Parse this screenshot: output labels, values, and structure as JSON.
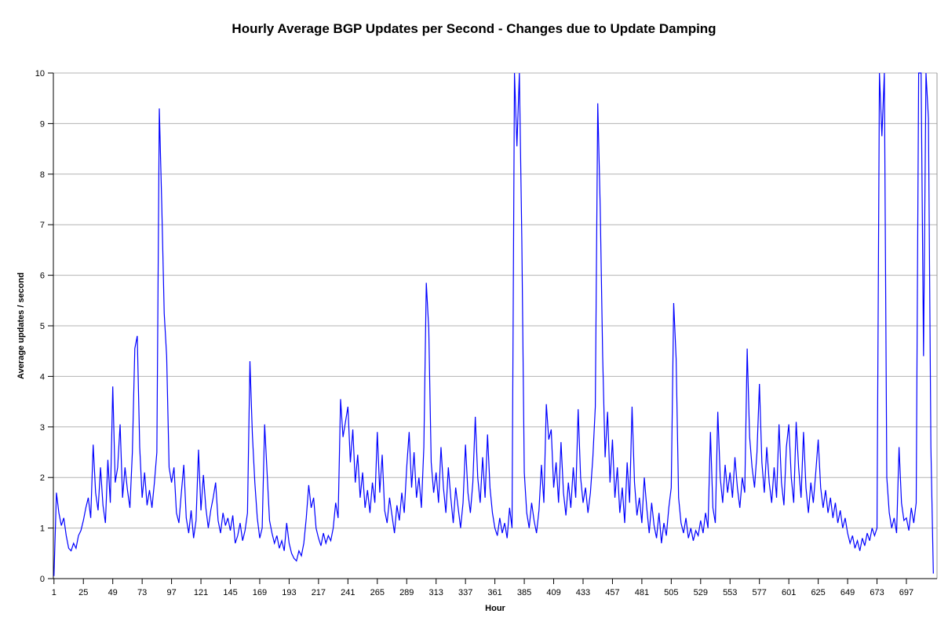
{
  "chart_data": {
    "type": "line",
    "title": "Hourly Average BGP Updates per Second - Changes due to Update Damping",
    "xlabel": "Hour",
    "ylabel": "Average updates / second",
    "ylim": [
      0,
      10
    ],
    "xlim": [
      0.5,
      722
    ],
    "grid": "horizontal-only",
    "legend": "none",
    "line_color": "#0000ff",
    "grid_color": "#b3b3b3",
    "axis_color": "#000000",
    "plot_border_color": "#999999",
    "yticks": [
      0,
      1,
      2,
      3,
      4,
      5,
      6,
      7,
      8,
      9,
      10
    ],
    "xticks": [
      1,
      25,
      49,
      73,
      97,
      121,
      145,
      169,
      193,
      217,
      241,
      265,
      289,
      313,
      337,
      361,
      385,
      409,
      433,
      457,
      481,
      505,
      529,
      553,
      577,
      601,
      625,
      649,
      673,
      697
    ],
    "x_start": 1,
    "x_step": 2,
    "values": [
      0.05,
      1.7,
      1.3,
      1.05,
      1.2,
      0.85,
      0.6,
      0.55,
      0.7,
      0.6,
      0.85,
      0.95,
      1.15,
      1.4,
      1.6,
      1.2,
      2.65,
      1.7,
      1.35,
      2.2,
      1.45,
      1.1,
      2.35,
      1.5,
      3.8,
      1.9,
      2.2,
      3.05,
      1.6,
      2.2,
      1.75,
      1.4,
      2.5,
      4.55,
      4.8,
      2.6,
      1.6,
      2.1,
      1.45,
      1.75,
      1.4,
      1.9,
      2.5,
      9.3,
      7.4,
      5.25,
      4.4,
      2.2,
      1.9,
      2.2,
      1.3,
      1.1,
      1.7,
      2.25,
      1.2,
      0.9,
      1.35,
      0.8,
      1.15,
      2.55,
      1.35,
      2.05,
      1.4,
      1.0,
      1.35,
      1.6,
      1.9,
      1.15,
      0.9,
      1.3,
      1.05,
      1.2,
      0.95,
      1.25,
      0.7,
      0.85,
      1.1,
      0.75,
      0.95,
      1.3,
      4.3,
      2.85,
      1.9,
      1.2,
      0.8,
      1.0,
      3.05,
      2.1,
      1.15,
      0.9,
      0.7,
      0.85,
      0.6,
      0.75,
      0.55,
      1.1,
      0.7,
      0.5,
      0.4,
      0.35,
      0.55,
      0.45,
      0.7,
      1.2,
      1.85,
      1.4,
      1.6,
      1.0,
      0.8,
      0.65,
      0.9,
      0.7,
      0.85,
      0.75,
      1.0,
      1.5,
      1.2,
      3.55,
      2.8,
      3.1,
      3.4,
      2.3,
      2.95,
      1.9,
      2.45,
      1.6,
      2.1,
      1.4,
      1.75,
      1.3,
      1.9,
      1.5,
      2.9,
      1.7,
      2.45,
      1.35,
      1.1,
      1.6,
      1.25,
      0.9,
      1.45,
      1.15,
      1.7,
      1.3,
      2.2,
      2.9,
      1.8,
      2.5,
      1.6,
      2.0,
      1.4,
      2.6,
      5.85,
      4.95,
      2.3,
      1.7,
      2.1,
      1.5,
      2.6,
      1.8,
      1.3,
      2.2,
      1.6,
      1.1,
      1.8,
      1.4,
      1.0,
      1.5,
      2.65,
      1.7,
      1.3,
      1.9,
      3.2,
      2.0,
      1.5,
      2.4,
      1.6,
      2.85,
      1.8,
      1.3,
      1.0,
      0.85,
      1.2,
      0.9,
      1.1,
      0.8,
      1.4,
      1.0,
      10,
      8.55,
      10,
      6.7,
      2.1,
      1.3,
      1.0,
      1.5,
      1.15,
      0.9,
      1.35,
      2.25,
      1.5,
      3.45,
      2.75,
      2.95,
      1.8,
      2.3,
      1.5,
      2.7,
      1.7,
      1.25,
      1.9,
      1.4,
      2.2,
      1.6,
      3.35,
      2.0,
      1.5,
      1.8,
      1.3,
      1.7,
      2.4,
      3.4,
      9.4,
      7.35,
      4.4,
      2.4,
      3.3,
      1.9,
      2.75,
      1.6,
      2.2,
      1.3,
      1.8,
      1.1,
      2.3,
      1.5,
      3.4,
      1.9,
      1.25,
      1.6,
      1.1,
      2.0,
      1.4,
      0.9,
      1.5,
      1.05,
      0.8,
      1.3,
      0.7,
      1.1,
      0.85,
      1.4,
      1.8,
      5.45,
      4.35,
      1.6,
      1.1,
      0.9,
      1.2,
      0.8,
      1.0,
      0.75,
      0.95,
      0.85,
      1.15,
      0.9,
      1.3,
      1.0,
      2.9,
      1.4,
      1.1,
      3.3,
      2.0,
      1.5,
      2.25,
      1.7,
      2.1,
      1.6,
      2.4,
      1.8,
      1.4,
      2.0,
      1.7,
      4.55,
      2.8,
      2.2,
      1.8,
      2.5,
      3.85,
      2.3,
      1.7,
      2.6,
      1.9,
      1.5,
      2.2,
      1.6,
      3.05,
      1.9,
      1.45,
      2.6,
      3.05,
      2.0,
      1.5,
      3.1,
      2.2,
      1.6,
      2.9,
      1.8,
      1.3,
      1.9,
      1.5,
      2.1,
      2.75,
      1.8,
      1.4,
      1.75,
      1.3,
      1.6,
      1.2,
      1.5,
      1.1,
      1.35,
      1.0,
      1.2,
      0.9,
      0.7,
      0.85,
      0.6,
      0.75,
      0.55,
      0.8,
      0.65,
      0.9,
      0.75,
      1.0,
      0.85,
      1.0,
      10,
      8.75,
      10,
      2.0,
      1.3,
      1.0,
      1.2,
      0.9,
      2.6,
      1.5,
      1.15,
      1.2,
      0.95,
      1.4,
      1.1,
      1.5,
      10,
      10,
      4.4,
      10,
      9.1,
      2.6,
      0.1
    ]
  }
}
